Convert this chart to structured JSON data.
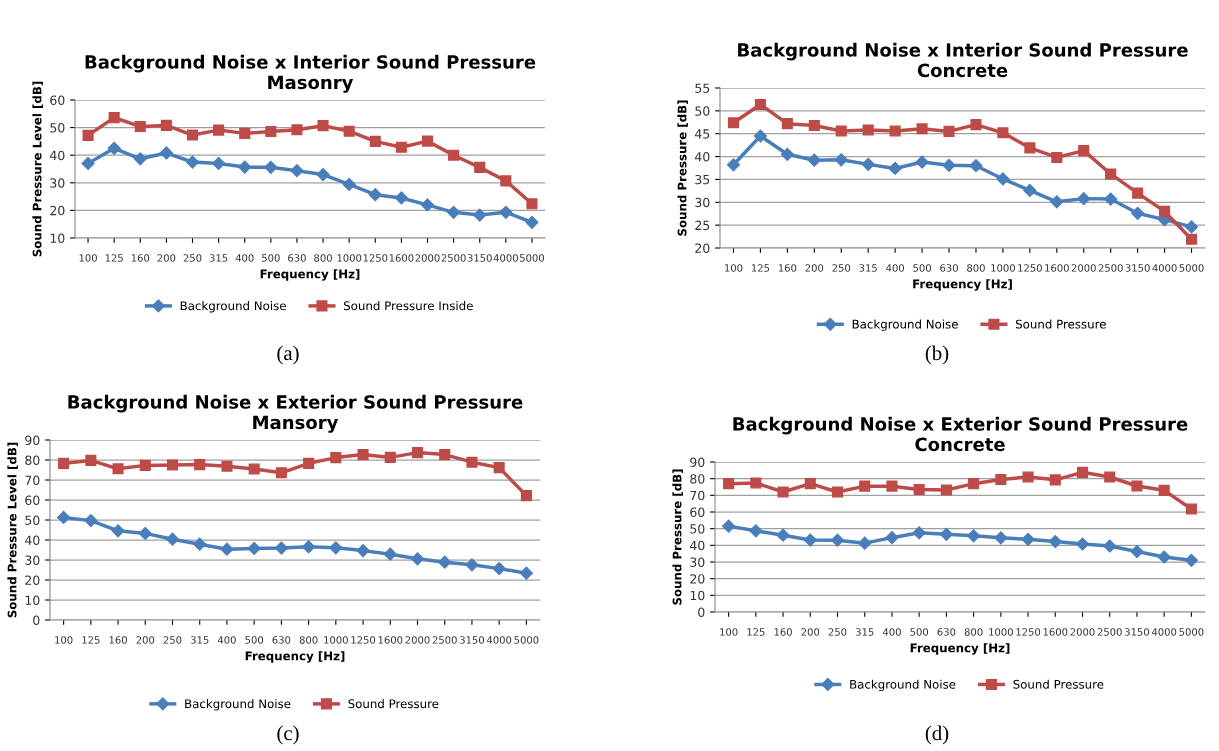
{
  "chart_data": [
    {
      "type": "line",
      "title": "Background Noise x Interior Sound Pressure\nMasonry",
      "xlabel": "Frequency [Hz]",
      "ylabel": "Sound Pressure Level [dB]",
      "categories": [
        "100",
        "125",
        "160",
        "200",
        "250",
        "315",
        "400",
        "500",
        "630",
        "800",
        "1000",
        "1250",
        "1600",
        "2000",
        "2500",
        "3150",
        "4000",
        "5000"
      ],
      "series": [
        {
          "name": "Background Noise",
          "color": "#4a7ebb",
          "marker": "diamond",
          "values": [
            37,
            42.5,
            38.7,
            40.8,
            37.5,
            37,
            35.7,
            35.6,
            34.4,
            33,
            29.4,
            25.7,
            24.5,
            22,
            19.3,
            18.3,
            19.3,
            15.7
          ]
        },
        {
          "name": "Sound Pressure Inside",
          "color": "#be4b48",
          "marker": "square",
          "values": [
            47.2,
            53.6,
            50.4,
            50.8,
            47.3,
            49.1,
            47.9,
            48.6,
            49.2,
            50.7,
            48.7,
            45,
            42.9,
            45.1,
            40,
            35.6,
            30.7,
            22.4
          ]
        }
      ],
      "ylim": [
        10,
        60
      ],
      "yticks": [
        10,
        20,
        30,
        40,
        50,
        60
      ],
      "grid": "y",
      "legend": "bottom",
      "annotations": [
        "(a)"
      ]
    },
    {
      "type": "line",
      "title": "Background Noise x Interior Sound Pressure\nConcrete",
      "xlabel": "Frequency [Hz]",
      "ylabel": "Sound Pressure [dB]",
      "categories": [
        "100",
        "125",
        "160",
        "200",
        "250",
        "315",
        "400",
        "500",
        "630",
        "800",
        "1000",
        "1250",
        "1600",
        "2000",
        "2500",
        "3150",
        "4000",
        "5000"
      ],
      "series": [
        {
          "name": "Background Noise",
          "color": "#4a7ebb",
          "marker": "diamond",
          "values": [
            38.2,
            44.5,
            40.5,
            39.2,
            39.3,
            38.3,
            37.4,
            38.8,
            38.1,
            38,
            35.1,
            32.6,
            30.1,
            30.8,
            30.7,
            27.6,
            26.2,
            24.6
          ]
        },
        {
          "name": "Sound Pressure",
          "color": "#be4b48",
          "marker": "square",
          "values": [
            47.4,
            51.4,
            47.2,
            46.8,
            45.6,
            45.8,
            45.6,
            46.1,
            45.5,
            47,
            45.2,
            41.9,
            39.8,
            41.3,
            36.2,
            32,
            28,
            21.9
          ]
        }
      ],
      "ylim": [
        20,
        55
      ],
      "yticks": [
        20,
        25,
        30,
        35,
        40,
        45,
        50,
        55
      ],
      "grid": "y",
      "legend": "bottom",
      "annotations": [
        "(b)"
      ]
    },
    {
      "type": "line",
      "title": "Background Noise x Exterior Sound Pressure\nMansory",
      "xlabel": "Frequency [Hz]",
      "ylabel": "Sound Pressure Level [dB]",
      "categories": [
        "100",
        "125",
        "160",
        "200",
        "250",
        "315",
        "400",
        "500",
        "630",
        "800",
        "1000",
        "1250",
        "1600",
        "2000",
        "2500",
        "3150",
        "4000",
        "5000"
      ],
      "series": [
        {
          "name": "Background Noise",
          "color": "#4a7ebb",
          "marker": "diamond",
          "values": [
            51.3,
            49.7,
            44.6,
            43.3,
            40.4,
            37.9,
            35.4,
            35.8,
            36,
            36.6,
            36.1,
            34.7,
            32.9,
            30.6,
            28.9,
            27.6,
            25.7,
            23.4
          ]
        },
        {
          "name": "Sound Pressure",
          "color": "#be4b48",
          "marker": "square",
          "values": [
            78.3,
            79.8,
            75.6,
            77.3,
            77.5,
            77.7,
            76.9,
            75.5,
            73.6,
            78.3,
            81.2,
            82.7,
            81.3,
            83.7,
            82.7,
            78.9,
            76.2,
            62.2
          ]
        }
      ],
      "ylim": [
        0,
        90
      ],
      "yticks": [
        0,
        10,
        20,
        30,
        40,
        50,
        60,
        70,
        80,
        90
      ],
      "grid": "y",
      "legend": "bottom",
      "annotations": [
        "(c)"
      ]
    },
    {
      "type": "line",
      "title": "Background Noise x Exterior Sound Pressure\nConcrete",
      "xlabel": "Frequency [Hz]",
      "ylabel": "Sound Pressure [dB]",
      "categories": [
        "100",
        "125",
        "160",
        "200",
        "250",
        "315",
        "400",
        "500",
        "630",
        "800",
        "1000",
        "1250",
        "1600",
        "2000",
        "2500",
        "3150",
        "4000",
        "5000"
      ],
      "series": [
        {
          "name": "Background Noise",
          "color": "#4a7ebb",
          "marker": "diamond",
          "values": [
            51.5,
            48.7,
            46.1,
            43.2,
            43.1,
            41.3,
            44.6,
            47.5,
            46.6,
            45.7,
            44.5,
            43.6,
            42.3,
            40.8,
            39.6,
            36.3,
            33,
            31
          ]
        },
        {
          "name": "Sound Pressure",
          "color": "#be4b48",
          "marker": "square",
          "values": [
            77,
            77.4,
            72,
            77,
            72,
            75.5,
            75.5,
            73.5,
            73.2,
            77,
            79.5,
            81,
            79.3,
            83.8,
            81,
            75.6,
            73,
            61.8
          ]
        }
      ],
      "ylim": [
        0,
        90
      ],
      "yticks": [
        0,
        10,
        20,
        30,
        40,
        50,
        60,
        70,
        80,
        90
      ],
      "grid": "y",
      "legend": "bottom",
      "annotations": [
        "(d)"
      ]
    }
  ]
}
